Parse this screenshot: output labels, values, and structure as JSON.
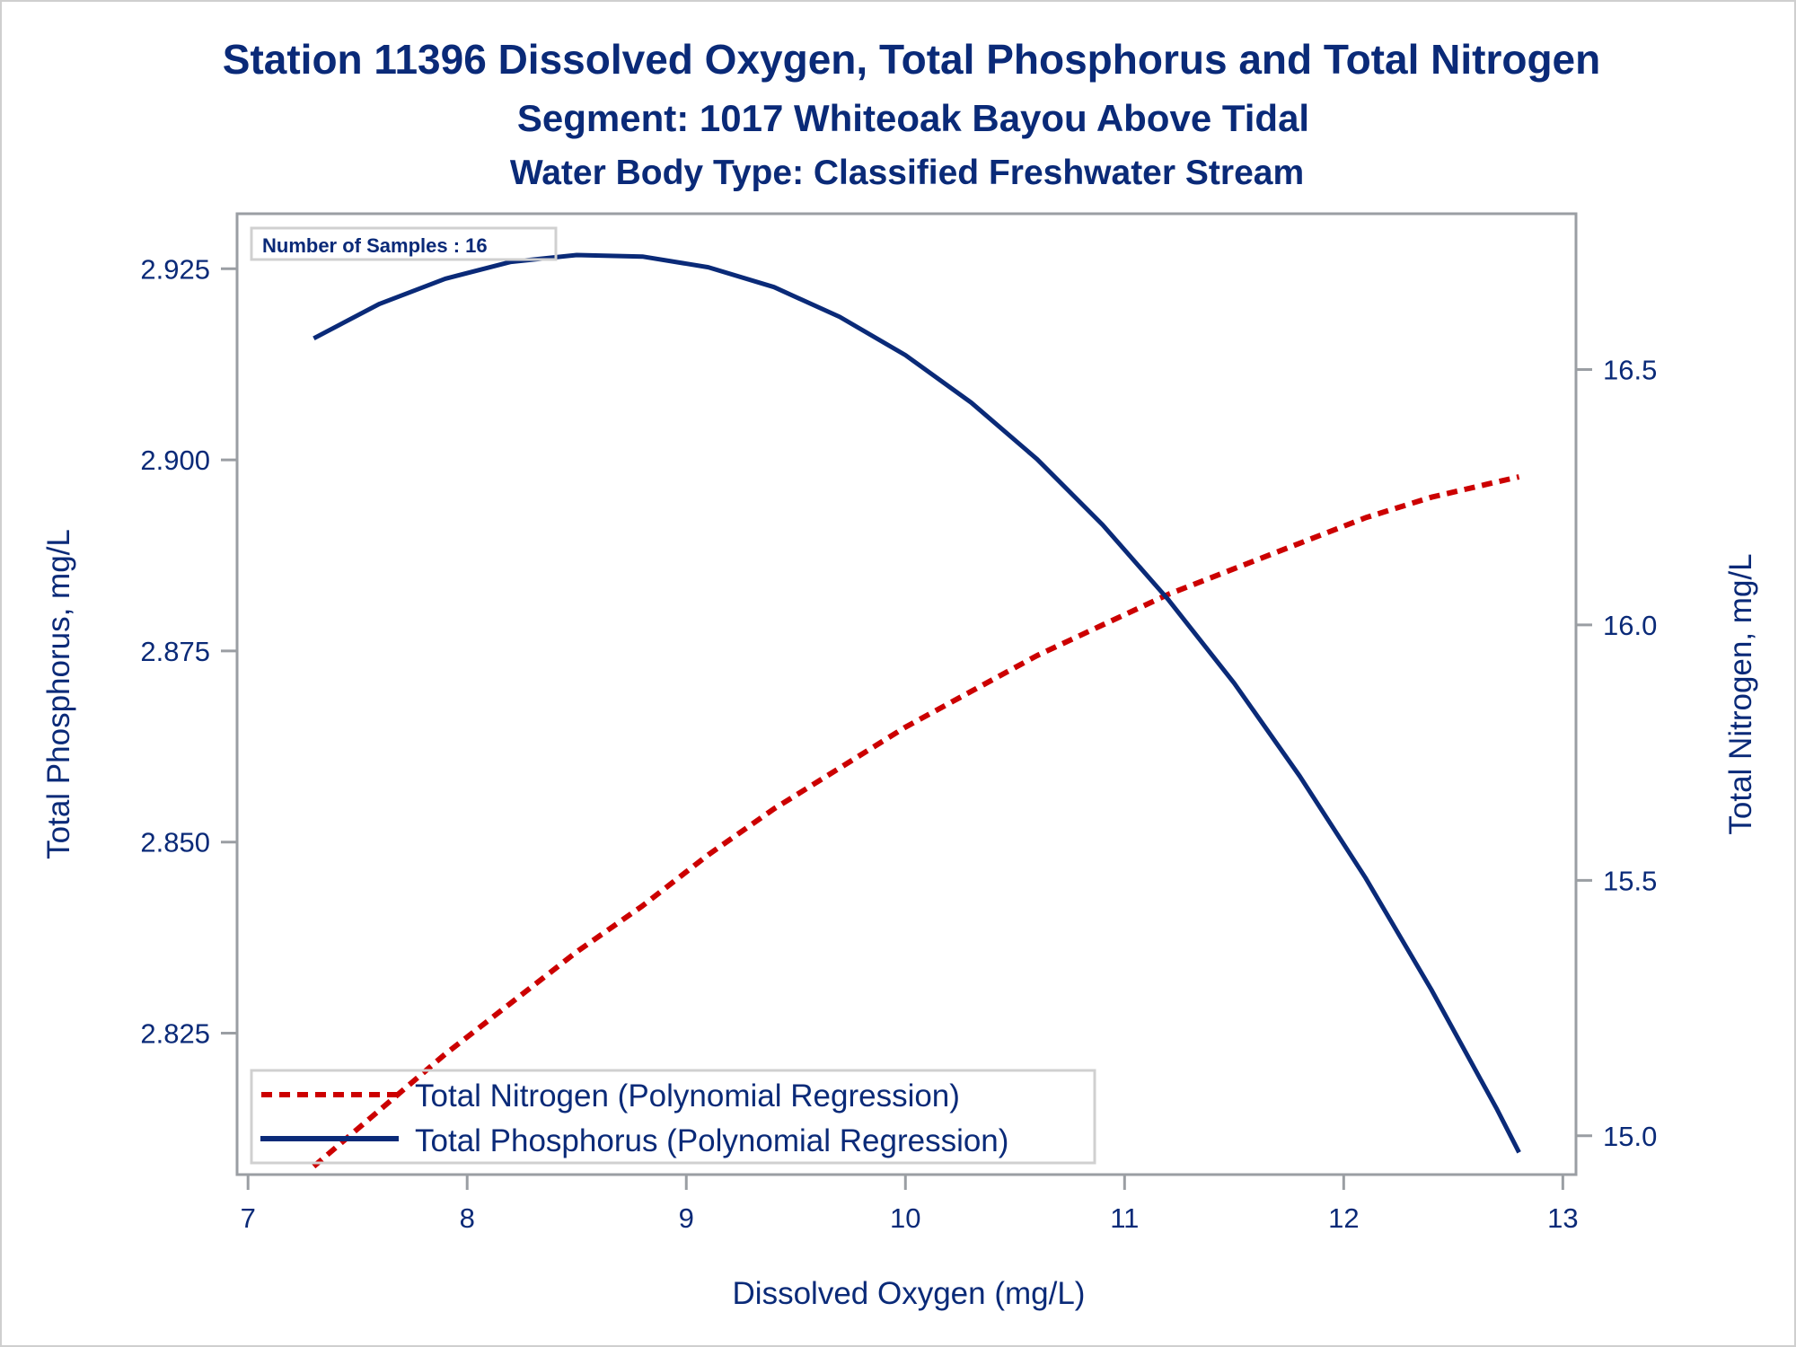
{
  "chart_data": {
    "type": "line",
    "title": "Station 11396  Dissolved Oxygen, Total Phosphorus and Total Nitrogen",
    "subtitle": "Segment: 1017  Whiteoak Bayou Above Tidal",
    "subtitle2": "Water Body Type: Classified Freshwater Stream",
    "xlabel": "Dissolved Oxygen (mg/L)",
    "ylabel": "Total Phosphorus, mg/L",
    "y2label": "Total Nitrogen, mg/L",
    "xlim": [
      6.95,
      13.06
    ],
    "ylim": [
      2.8065,
      2.9322
    ],
    "y2lim": [
      14.924,
      16.805
    ],
    "x_ticks": [
      "7",
      "8",
      "9",
      "10",
      "11",
      "12",
      "13"
    ],
    "y_ticks": [
      "2.825",
      "2.850",
      "2.875",
      "2.900",
      "2.925"
    ],
    "y2_ticks": [
      "15.0",
      "15.5",
      "16.0",
      "16.5"
    ],
    "grid": false,
    "inset": "Number of Samples : 16",
    "legend_position": "bottom-left",
    "series": [
      {
        "name": "Total Nitrogen (Polynomial Regression)",
        "axis": "right",
        "color": "#cc0000",
        "style": "dashed",
        "x": [
          7.3,
          7.6,
          7.9,
          8.2,
          8.5,
          8.8,
          9.1,
          9.4,
          9.7,
          10.0,
          10.3,
          10.6,
          10.9,
          11.2,
          11.5,
          11.8,
          12.1,
          12.4,
          12.7,
          12.8
        ],
        "y": [
          14.94,
          15.05,
          15.16,
          15.26,
          15.36,
          15.45,
          15.55,
          15.64,
          15.72,
          15.8,
          15.87,
          15.94,
          16.0,
          16.06,
          16.11,
          16.16,
          16.21,
          16.25,
          16.28,
          16.29
        ]
      },
      {
        "name": "Total Phosphorus (Polynomial Regression)",
        "axis": "left",
        "color": "#0a2a78",
        "style": "solid",
        "x": [
          7.3,
          7.6,
          7.9,
          8.2,
          8.5,
          8.8,
          9.1,
          9.4,
          9.7,
          10.0,
          10.3,
          10.6,
          10.9,
          11.2,
          11.5,
          11.8,
          12.1,
          12.4,
          12.7,
          12.8
        ],
        "y": [
          2.9159,
          2.9204,
          2.9237,
          2.9259,
          2.9268,
          2.9266,
          2.9252,
          2.9226,
          2.9187,
          2.9137,
          2.9075,
          2.9001,
          2.8915,
          2.8817,
          2.8708,
          2.8586,
          2.8453,
          2.8307,
          2.815,
          2.8094
        ]
      }
    ]
  }
}
